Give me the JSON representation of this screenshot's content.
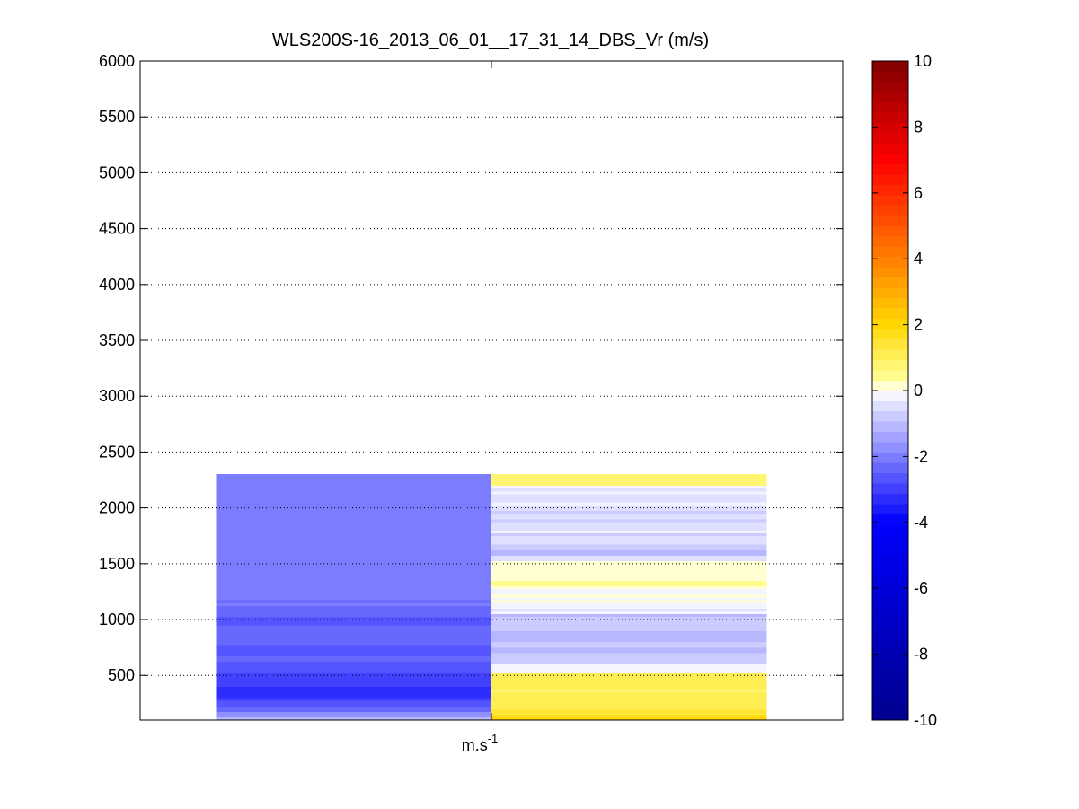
{
  "chart_data": {
    "type": "heatmap",
    "title": "WLS200S-16_2013_06_01__17_31_14_DBS_Vr (m/s)",
    "xlabel_base": "m.s",
    "xlabel_exponent": "-1",
    "ylabel": "",
    "ylim": [
      100,
      6000
    ],
    "yticks": [
      500,
      1000,
      1500,
      2000,
      2500,
      3000,
      3500,
      4000,
      4500,
      5000,
      5500,
      6000
    ],
    "grid": "horizontal dotted",
    "colorbar": {
      "range": [
        -10,
        10
      ],
      "ticks": [
        -10,
        -8,
        -6,
        -4,
        -2,
        0,
        2,
        4,
        6,
        8,
        10
      ],
      "levels": 64,
      "colormap": "blue-white-yellow-red",
      "anchors": [
        {
          "value": -10,
          "color": "#00008f"
        },
        {
          "value": -4,
          "color": "#0000ff"
        },
        {
          "value": -0.35,
          "color": "#e6e6ff"
        },
        {
          "value": 0,
          "color": "#ffffff"
        },
        {
          "value": 0.35,
          "color": "#ffff99"
        },
        {
          "value": 2,
          "color": "#ffd700"
        },
        {
          "value": 4,
          "color": "#ff7f00"
        },
        {
          "value": 7,
          "color": "#ff0000"
        },
        {
          "value": 10,
          "color": "#800000"
        }
      ]
    },
    "columns": [
      {
        "x_range": [
          0.5,
          1.5
        ],
        "height_range": [
          100,
          2300
        ],
        "values": [
          -1.1,
          -1.6,
          -1.7,
          -2.3,
          -2.5,
          -2.7,
          -2.8,
          -3.0,
          -3.2,
          -3.3,
          -3.3,
          -3.2,
          -3.1,
          -3.0,
          -2.9,
          -3.0,
          -2.9,
          -2.8,
          -2.6,
          -2.7,
          -2.6,
          -2.5,
          -2.5,
          -2.6,
          -2.6,
          -2.7,
          -2.6,
          -2.5,
          -2.4,
          -2.5,
          -2.3,
          -2.4,
          -2.4,
          -2.5,
          -2.6,
          -2.7,
          -2.6,
          -2.5,
          -2.4,
          -2.3,
          -2.2,
          -2.1,
          -2.2,
          -2.1,
          -2.0,
          -2.1,
          -2.0,
          -2.1,
          -2.0,
          -1.9,
          -2.0,
          -1.9,
          -1.9,
          -2.1,
          -2.0,
          -2.0,
          -2.0,
          -2.1,
          -2.0,
          -2.1,
          -2.0,
          -2.1,
          -2.0,
          -1.9,
          -2.0,
          -2.0,
          -2.1,
          -2.0,
          -1.9,
          -2.0,
          -2.1,
          -2.0,
          -2.0,
          -2.1,
          -2.0,
          -2.0,
          -2.1,
          -2.0,
          -1.9,
          -2.0,
          -2.0,
          -2.1,
          -2.0,
          -2.0,
          -2.0,
          -1.9,
          -2.0,
          -2.0
        ]
      },
      {
        "x_range": [
          1.5,
          2.5
        ],
        "height_range": [
          100,
          2300
        ],
        "values": [
          2.0,
          1.8,
          1.5,
          1.3,
          1.2,
          1.0,
          1.0,
          1.0,
          1.1,
          1.0,
          0.9,
          1.0,
          1.0,
          1.0,
          1.0,
          1.0,
          1.0,
          -0.3,
          -0.2,
          -0.1,
          -0.9,
          -0.9,
          -0.8,
          -0.7,
          -1.0,
          -1.1,
          -0.9,
          -0.8,
          -1.1,
          -1.0,
          -1.0,
          -1.1,
          -0.9,
          -0.8,
          -0.7,
          -0.8,
          -0.8,
          -1.0,
          -0.2,
          -0.5,
          -0.3,
          -0.1,
          0.0,
          -0.1,
          0.0,
          -0.1,
          -0.1,
          0.0,
          0.4,
          0.4,
          0.0,
          0.0,
          0.0,
          0.0,
          0.0,
          0.0,
          0.0,
          -0.6,
          -0.4,
          -1.0,
          -1.0,
          -0.7,
          -0.7,
          -0.5,
          -0.6,
          -0.4,
          -0.7,
          -0.3,
          -0.4,
          -0.4,
          -0.6,
          -0.7,
          -0.6,
          -0.5,
          -0.7,
          -0.6,
          -0.4,
          -0.3,
          -0.4,
          -0.5,
          -0.4,
          -0.1,
          -0.5,
          -0.3,
          0.7,
          0.7,
          0.8,
          0.7
        ]
      }
    ]
  },
  "colors": {
    "axis": "#000000",
    "background": "#ffffff",
    "grid": "#000000"
  }
}
